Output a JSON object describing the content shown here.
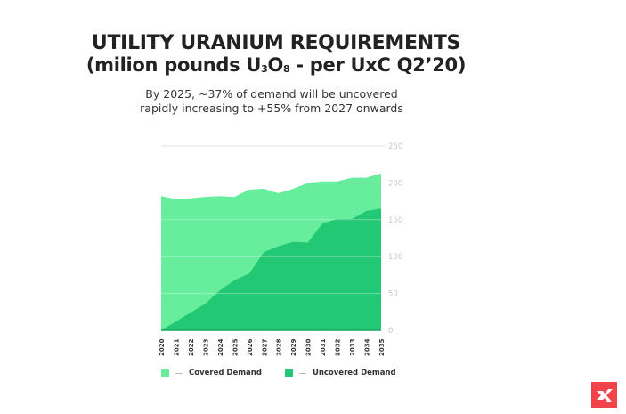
{
  "header": {
    "title_line1": "UTILITY URANIUM REQUIREMENTS",
    "title_line2_prefix": "(milion pounds U",
    "title_sub1": "3",
    "title_mid": "O",
    "title_sub2": "8",
    "title_line2_suffix": " - per UxC Q2’20)",
    "subtitle_line1": "By 2025, ~37% of demand will be uncovered",
    "subtitle_line2": "rapidly increasing to +55% from 2027 onwards"
  },
  "legend": {
    "items": [
      {
        "label": "Covered Demand",
        "color": "#66ee9c"
      },
      {
        "label": "Uncovered Demand",
        "color": "#22c873"
      }
    ]
  },
  "logo": {
    "icon": "x-brand-logo",
    "color": "#f2434b"
  },
  "chart_data": {
    "type": "area",
    "title": "UTILITY URANIUM REQUIREMENTS (milion pounds U3O8 - per UxC Q2'20)",
    "subtitle": "By 2025, ~37% of demand will be uncovered rapidly increasing to +55% from 2027 onwards",
    "xlabel": "",
    "ylabel": "",
    "x": [
      "2020",
      "2021",
      "2022",
      "2023",
      "2024",
      "2025",
      "2026",
      "2027",
      "2028",
      "2029",
      "2030",
      "2031",
      "2032",
      "2033",
      "2034",
      "2035"
    ],
    "series": [
      {
        "name": "Covered Demand",
        "color": "#66ee9c",
        "note": "total requirement (top of filled area)",
        "values": [
          182,
          178,
          179,
          181,
          182,
          181,
          191,
          192,
          186,
          192,
          200,
          202,
          202,
          207,
          207,
          213
        ]
      },
      {
        "name": "Uncovered Demand",
        "color": "#22c873",
        "values": [
          0,
          12,
          24,
          36,
          54,
          68,
          77,
          106,
          114,
          120,
          119,
          145,
          151,
          151,
          162,
          165
        ]
      }
    ],
    "yticks": [
      0,
      50,
      100,
      150,
      200,
      250
    ],
    "ylim": [
      0,
      250
    ],
    "y_axis_position": "right",
    "grid": true,
    "legend_position": "bottom"
  }
}
